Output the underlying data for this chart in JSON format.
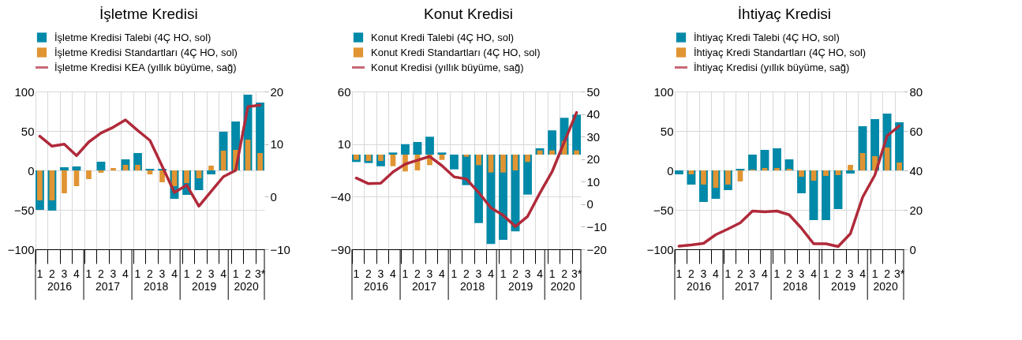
{
  "chart_data": [
    {
      "type": "bar",
      "title": "İşletme Kredisi",
      "categories": [
        "1",
        "2",
        "3",
        "4",
        "1",
        "2",
        "3",
        "4",
        "1",
        "2",
        "3",
        "4",
        "1",
        "2",
        "3",
        "4",
        "1",
        "2",
        "3*"
      ],
      "series": [
        {
          "name": "İşletme Kredisi Talebi (4Ç HO, sol)",
          "color": "#0089a8",
          "values": [
            -50,
            -51,
            4,
            5,
            null,
            11,
            null,
            14,
            22,
            2,
            2,
            -36,
            -31,
            -25,
            -5,
            49,
            62,
            96,
            86
          ]
        },
        {
          "name": "İşletme Kredisi Standartları (4Ç HO, sol)",
          "color": "#e09432",
          "values": [
            -38,
            -38,
            -29,
            -20,
            -11,
            -3,
            3,
            7,
            7,
            -5,
            -15,
            -20,
            -16,
            -10,
            6,
            25,
            26,
            39,
            22
          ]
        },
        {
          "name": "İşletme Kredisi KEA (yıllık büyüme, sağ)",
          "type": "line",
          "axis": "y2",
          "color": "#b02a3a",
          "values": [
            11.5,
            9.6,
            10,
            7.8,
            10.4,
            12.1,
            13.2,
            14.6,
            12.6,
            10.7,
            5.8,
            0.8,
            2.2,
            -1.8,
            1,
            3.8,
            5,
            17.1,
            17.4
          ]
        }
      ],
      "ylim": [
        -100,
        100
      ],
      "yticks": [
        -100,
        -50,
        0,
        50,
        100
      ],
      "y2lim": [
        -10,
        20
      ],
      "y2ticks": [
        -10,
        0,
        10,
        20
      ],
      "grid": true,
      "legend": "top",
      "annotations": [
        "2016",
        "2017",
        "2018",
        "2019",
        "2020"
      ]
    },
    {
      "type": "bar",
      "title": "Konut Kredisi",
      "categories": [
        "1",
        "2",
        "3",
        "4",
        "1",
        "2",
        "3",
        "4",
        "1",
        "2",
        "3",
        "4",
        "1",
        "2",
        "3",
        "4",
        "1",
        "2",
        "3*"
      ],
      "series": [
        {
          "name": "Konut Kredi Talebi (4Ç HO, sol)",
          "color": "#0089a8",
          "values": [
            -7,
            -8,
            -11,
            2,
            10,
            12,
            17,
            2,
            -14,
            -29,
            -65,
            -85,
            -81,
            -73,
            -38,
            6,
            23,
            35,
            38
          ]
        },
        {
          "name": "Konut Kredi Standartları (4Ç HO, sol)",
          "color": "#e09432",
          "values": [
            -5,
            -6,
            -6,
            -11,
            -16,
            -15,
            -10,
            -5,
            null,
            -2,
            -10,
            -17,
            -17,
            -15,
            -7,
            4,
            4,
            13,
            4
          ]
        },
        {
          "name": "Konut Kredisi (yıllık büyüme, sağ)",
          "type": "line",
          "axis": "y2",
          "color": "#b02a3a",
          "values": [
            11.6,
            9.1,
            9.3,
            14.3,
            17.8,
            19.5,
            21.2,
            17.1,
            12.1,
            11.2,
            5.2,
            -1.6,
            -4.9,
            -9.9,
            -5.4,
            4.9,
            14.4,
            27.7,
            40.7
          ]
        }
      ],
      "ylim": [
        -90,
        60
      ],
      "yticks": [
        -90,
        -40,
        10,
        60
      ],
      "y2lim": [
        -20,
        50
      ],
      "y2ticks": [
        -20,
        -10,
        0,
        10,
        20,
        30,
        40,
        50
      ],
      "grid": true,
      "legend": "top",
      "annotations": [
        "2016",
        "2017",
        "2018",
        "2019",
        "2020"
      ]
    },
    {
      "type": "bar",
      "title": "İhtiyaç Kredisi",
      "categories": [
        "1",
        "2",
        "3",
        "4",
        "1",
        "2",
        "3",
        "4",
        "1",
        "2",
        "3",
        "4",
        "1",
        "2",
        "3",
        "4",
        "1",
        "2",
        "3*"
      ],
      "series": [
        {
          "name": "İhtiyaç Kredi Talebi (4Ç HO, sol)",
          "color": "#0089a8",
          "values": [
            -5,
            -18,
            -40,
            -36,
            -25,
            2,
            20,
            26,
            28,
            14,
            -29,
            -63,
            -63,
            -49,
            -4,
            56,
            65,
            72,
            61
          ]
        },
        {
          "name": "İhtiyaç Kredi Standartları (4Ç HO, sol)",
          "color": "#e09432",
          "values": [
            null,
            -5,
            -18,
            -22,
            -18,
            -14,
            1,
            3,
            3,
            2,
            -8,
            -13,
            -7,
            -6,
            7,
            22,
            18,
            29,
            10
          ]
        },
        {
          "name": "İhtiyaç Kredisi (yıllık büyüme, sağ)",
          "type": "line",
          "axis": "y2",
          "color": "#b02a3a",
          "values": [
            1.6,
            2.2,
            3,
            7.4,
            10.3,
            13.4,
            19.4,
            19,
            19.4,
            17.5,
            10.7,
            2.8,
            2.8,
            1.4,
            7.9,
            26.4,
            37.6,
            57.5,
            62.6
          ]
        }
      ],
      "ylim": [
        -100,
        100
      ],
      "yticks": [
        -100,
        -50,
        0,
        50,
        100
      ],
      "y2lim": [
        0,
        80
      ],
      "y2ticks": [
        0,
        20,
        40,
        60,
        80
      ],
      "grid": true,
      "legend": "top",
      "annotations": [
        "2016",
        "2017",
        "2018",
        "2019",
        "2020"
      ]
    }
  ]
}
